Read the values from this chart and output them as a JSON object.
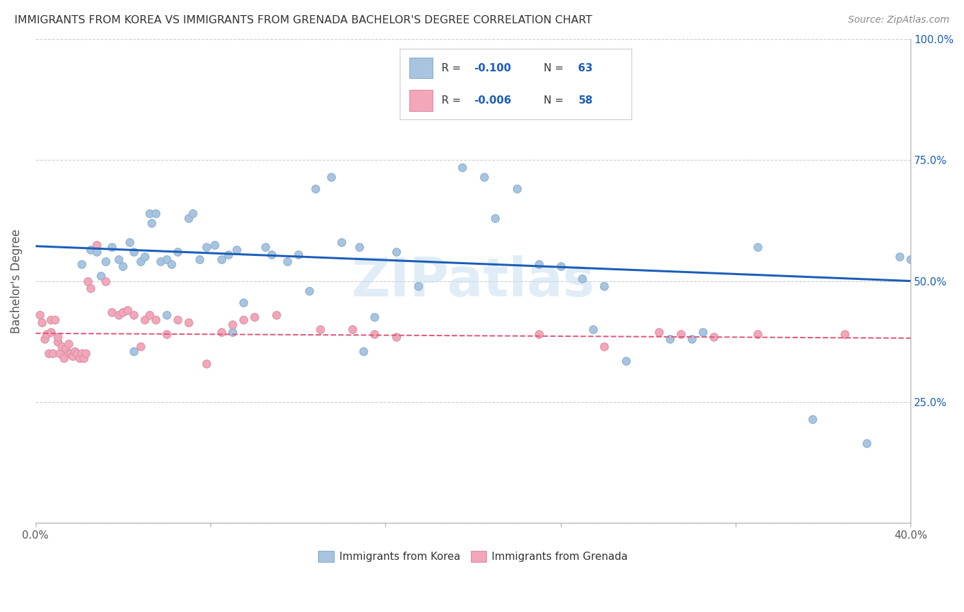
{
  "title": "IMMIGRANTS FROM KOREA VS IMMIGRANTS FROM GRENADA BACHELOR'S DEGREE CORRELATION CHART",
  "source": "Source: ZipAtlas.com",
  "ylabel": "Bachelor's Degree",
  "x_min": 0.0,
  "x_max": 0.4,
  "y_min": 0.0,
  "y_max": 1.0,
  "korea_R": "-0.100",
  "korea_N": "63",
  "grenada_R": "-0.006",
  "grenada_N": "58",
  "korea_color": "#a8c4e0",
  "grenada_color": "#f4a7b9",
  "korea_line_color": "#1a5eb8",
  "grenada_line_color": "#e05a7a",
  "watermark": "ZIPatlas",
  "korea_x": [
    0.021,
    0.025,
    0.028,
    0.032,
    0.035,
    0.038,
    0.04,
    0.043,
    0.045,
    0.048,
    0.05,
    0.052,
    0.053,
    0.055,
    0.057,
    0.06,
    0.062,
    0.065,
    0.07,
    0.072,
    0.075,
    0.078,
    0.082,
    0.085,
    0.088,
    0.092,
    0.095,
    0.105,
    0.108,
    0.115,
    0.12,
    0.125,
    0.128,
    0.135,
    0.14,
    0.148,
    0.155,
    0.165,
    0.185,
    0.195,
    0.205,
    0.21,
    0.22,
    0.23,
    0.24,
    0.25,
    0.255,
    0.26,
    0.27,
    0.29,
    0.305,
    0.33,
    0.355,
    0.38,
    0.395,
    0.4,
    0.045,
    0.03,
    0.06,
    0.09,
    0.15,
    0.175,
    0.3
  ],
  "korea_y": [
    0.535,
    0.565,
    0.56,
    0.54,
    0.57,
    0.545,
    0.53,
    0.58,
    0.56,
    0.54,
    0.55,
    0.64,
    0.62,
    0.64,
    0.54,
    0.545,
    0.535,
    0.56,
    0.63,
    0.64,
    0.545,
    0.57,
    0.575,
    0.545,
    0.555,
    0.565,
    0.455,
    0.57,
    0.555,
    0.54,
    0.555,
    0.48,
    0.69,
    0.715,
    0.58,
    0.57,
    0.425,
    0.56,
    0.86,
    0.735,
    0.715,
    0.63,
    0.69,
    0.535,
    0.53,
    0.505,
    0.4,
    0.49,
    0.335,
    0.38,
    0.395,
    0.57,
    0.215,
    0.165,
    0.55,
    0.545,
    0.355,
    0.51,
    0.43,
    0.395,
    0.355,
    0.49,
    0.38
  ],
  "grenada_x": [
    0.002,
    0.003,
    0.004,
    0.005,
    0.006,
    0.007,
    0.007,
    0.008,
    0.009,
    0.01,
    0.01,
    0.011,
    0.012,
    0.013,
    0.014,
    0.015,
    0.015,
    0.016,
    0.017,
    0.018,
    0.019,
    0.02,
    0.021,
    0.022,
    0.023,
    0.024,
    0.025,
    0.028,
    0.032,
    0.035,
    0.038,
    0.04,
    0.042,
    0.045,
    0.048,
    0.05,
    0.052,
    0.055,
    0.06,
    0.065,
    0.07,
    0.078,
    0.085,
    0.09,
    0.095,
    0.1,
    0.11,
    0.13,
    0.145,
    0.155,
    0.165,
    0.23,
    0.26,
    0.285,
    0.295,
    0.31,
    0.33,
    0.37
  ],
  "grenada_y": [
    0.43,
    0.415,
    0.38,
    0.39,
    0.35,
    0.42,
    0.395,
    0.35,
    0.42,
    0.375,
    0.385,
    0.35,
    0.365,
    0.34,
    0.36,
    0.37,
    0.35,
    0.35,
    0.345,
    0.355,
    0.35,
    0.34,
    0.35,
    0.34,
    0.35,
    0.5,
    0.485,
    0.575,
    0.5,
    0.435,
    0.43,
    0.435,
    0.44,
    0.43,
    0.365,
    0.42,
    0.43,
    0.42,
    0.39,
    0.42,
    0.415,
    0.33,
    0.395,
    0.41,
    0.42,
    0.425,
    0.43,
    0.4,
    0.4,
    0.39,
    0.385,
    0.39,
    0.365,
    0.395,
    0.39,
    0.385,
    0.39,
    0.39
  ]
}
